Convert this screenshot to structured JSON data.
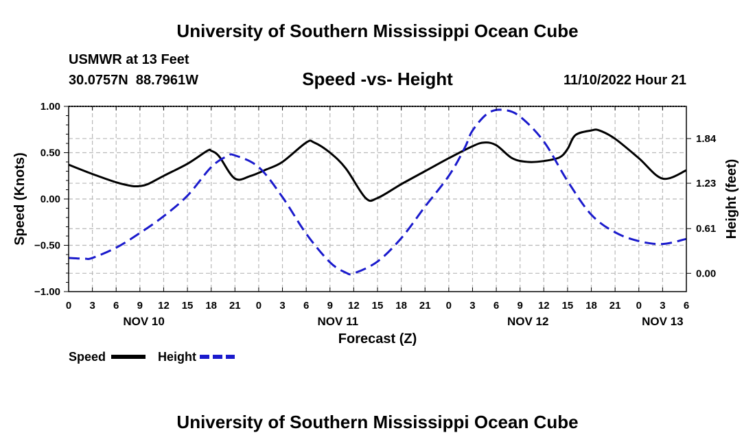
{
  "header": {
    "title_top": "University of Southern Mississippi Ocean Cube",
    "station": "USMWR at 13 Feet",
    "coords": "30.0757N  88.7961W",
    "chart_title": "Speed -vs- Height",
    "datetime": "11/10/2022 Hour 21"
  },
  "legend": {
    "speed_label": "Speed",
    "height_label": "Height"
  },
  "footer": {
    "title_bottom": "University of Southern Mississippi Ocean Cube"
  },
  "colors": {
    "speed": "#000000",
    "height": "#1a1acc",
    "grid": "#b8b8b8"
  },
  "chart_data": {
    "type": "line",
    "title": "Speed -vs- Height",
    "xlabel": "Forecast (Z)",
    "ylabel_left": "Speed (Knots)",
    "ylabel_right": "Height (feet)",
    "x_range_hours": [
      0,
      78
    ],
    "x_ticks": [
      {
        "hour": 0,
        "label": "0"
      },
      {
        "hour": 3,
        "label": "3"
      },
      {
        "hour": 6,
        "label": "6"
      },
      {
        "hour": 9,
        "label": "9"
      },
      {
        "hour": 12,
        "label": "12"
      },
      {
        "hour": 15,
        "label": "15"
      },
      {
        "hour": 18,
        "label": "18"
      },
      {
        "hour": 21,
        "label": "21"
      },
      {
        "hour": 24,
        "label": "0"
      },
      {
        "hour": 27,
        "label": "3"
      },
      {
        "hour": 30,
        "label": "6"
      },
      {
        "hour": 33,
        "label": "9"
      },
      {
        "hour": 36,
        "label": "12"
      },
      {
        "hour": 39,
        "label": "15"
      },
      {
        "hour": 42,
        "label": "18"
      },
      {
        "hour": 45,
        "label": "21"
      },
      {
        "hour": 48,
        "label": "0"
      },
      {
        "hour": 51,
        "label": "3"
      },
      {
        "hour": 54,
        "label": "6"
      },
      {
        "hour": 57,
        "label": "9"
      },
      {
        "hour": 60,
        "label": "12"
      },
      {
        "hour": 63,
        "label": "15"
      },
      {
        "hour": 66,
        "label": "18"
      },
      {
        "hour": 69,
        "label": "21"
      },
      {
        "hour": 72,
        "label": "0"
      },
      {
        "hour": 75,
        "label": "3"
      },
      {
        "hour": 78,
        "label": "6"
      }
    ],
    "date_labels": [
      {
        "hour": 9.5,
        "label": "NOV 10"
      },
      {
        "hour": 34,
        "label": "NOV 11"
      },
      {
        "hour": 58,
        "label": "NOV 12"
      },
      {
        "hour": 75,
        "label": "NOV 13"
      }
    ],
    "y_left": {
      "range": [
        -1.0,
        1.0
      ],
      "ticks": [
        1.0,
        0.5,
        0.0,
        -0.5,
        -1.0
      ],
      "tick_labels": [
        "1.00",
        "0.50",
        "0.00",
        "−0.50",
        "−1.00"
      ]
    },
    "y_right": {
      "range": [
        -0.25,
        2.28
      ],
      "ticks": [
        1.84,
        1.23,
        0.61,
        0.0
      ],
      "tick_labels": [
        "1.84",
        "1.23",
        "0.61",
        "0.00"
      ]
    },
    "series": [
      {
        "name": "Speed",
        "axis": "left",
        "style": "solid",
        "x": [
          0,
          3,
          6,
          8,
          9,
          10,
          12,
          15,
          17.5,
          18,
          19,
          21,
          23,
          25,
          27,
          30,
          31,
          33,
          35,
          37.5,
          39,
          42,
          45,
          48,
          51,
          52.5,
          54,
          56,
          58,
          60,
          62,
          63,
          64,
          66,
          67,
          69,
          72,
          75,
          78
        ],
        "values": [
          0.37,
          0.27,
          0.18,
          0.14,
          0.14,
          0.16,
          0.25,
          0.38,
          0.52,
          0.52,
          0.46,
          0.22,
          0.25,
          0.32,
          0.4,
          0.61,
          0.61,
          0.5,
          0.33,
          0.01,
          0.01,
          0.16,
          0.3,
          0.44,
          0.57,
          0.61,
          0.58,
          0.44,
          0.4,
          0.41,
          0.45,
          0.54,
          0.69,
          0.74,
          0.74,
          0.65,
          0.44,
          0.22,
          0.31
        ]
      },
      {
        "name": "Height",
        "axis": "right",
        "style": "dashed",
        "x": [
          0,
          2,
          3,
          6,
          9,
          12,
          15,
          18,
          20,
          21,
          24,
          27,
          30,
          33,
          35,
          36,
          39,
          42,
          45,
          48,
          50,
          51,
          53,
          55,
          57,
          60,
          63,
          66,
          69,
          72,
          75,
          78
        ],
        "values": [
          0.21,
          0.2,
          0.21,
          0.35,
          0.55,
          0.78,
          1.06,
          1.45,
          1.6,
          1.61,
          1.45,
          1.04,
          0.54,
          0.15,
          0.01,
          0.0,
          0.16,
          0.48,
          0.91,
          1.33,
          1.71,
          1.95,
          2.19,
          2.23,
          2.14,
          1.8,
          1.26,
          0.8,
          0.56,
          0.44,
          0.4,
          0.47
        ]
      }
    ]
  }
}
